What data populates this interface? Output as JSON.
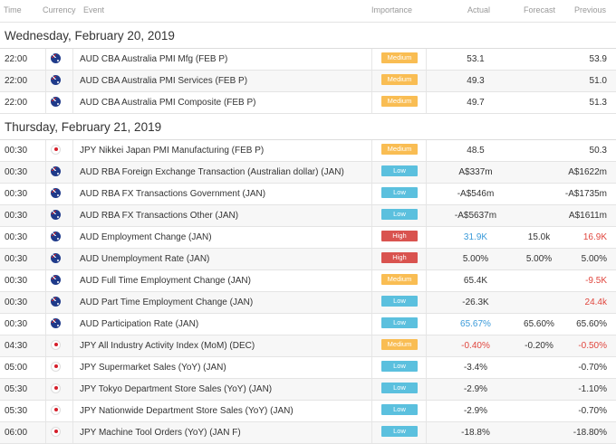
{
  "header": {
    "time": "Time",
    "currency": "Currency",
    "event": "Event",
    "importance": "Importance",
    "actual": "Actual",
    "forecast": "Forecast",
    "previous": "Previous"
  },
  "colors": {
    "medium": "#f9bd53",
    "low": "#5bc0de",
    "high": "#d9534f",
    "better": "#3a9ad9",
    "worse": "#e0463e"
  },
  "days": [
    {
      "title": "Wednesday, February 20, 2019",
      "events": [
        {
          "time": "22:00",
          "flag": "au",
          "event": "AUD CBA Australia PMI Mfg (FEB P)",
          "importance": "Medium",
          "actual": "53.1",
          "forecast": "",
          "previous": "53.9",
          "actual_tone": "",
          "previous_tone": ""
        },
        {
          "time": "22:00",
          "flag": "au",
          "event": "AUD CBA Australia PMI Services (FEB P)",
          "importance": "Medium",
          "actual": "49.3",
          "forecast": "",
          "previous": "51.0",
          "actual_tone": "",
          "previous_tone": ""
        },
        {
          "time": "22:00",
          "flag": "au",
          "event": "AUD CBA Australia PMI Composite (FEB P)",
          "importance": "Medium",
          "actual": "49.7",
          "forecast": "",
          "previous": "51.3",
          "actual_tone": "",
          "previous_tone": ""
        }
      ]
    },
    {
      "title": "Thursday, February 21, 2019",
      "events": [
        {
          "time": "00:30",
          "flag": "jp",
          "event": "JPY Nikkei Japan PMI Manufacturing (FEB P)",
          "importance": "Medium",
          "actual": "48.5",
          "forecast": "",
          "previous": "50.3",
          "actual_tone": "",
          "previous_tone": ""
        },
        {
          "time": "00:30",
          "flag": "au",
          "event": "AUD RBA Foreign Exchange Transaction (Australian dollar) (JAN)",
          "importance": "Low",
          "actual": "A$337m",
          "forecast": "",
          "previous": "A$1622m",
          "actual_tone": "",
          "previous_tone": ""
        },
        {
          "time": "00:30",
          "flag": "au",
          "event": "AUD RBA FX Transactions Government (JAN)",
          "importance": "Low",
          "actual": "-A$546m",
          "forecast": "",
          "previous": "-A$1735m",
          "actual_tone": "",
          "previous_tone": ""
        },
        {
          "time": "00:30",
          "flag": "au",
          "event": "AUD RBA FX Transactions Other (JAN)",
          "importance": "Low",
          "actual": "-A$5637m",
          "forecast": "",
          "previous": "A$1611m",
          "actual_tone": "",
          "previous_tone": ""
        },
        {
          "time": "00:30",
          "flag": "au",
          "event": "AUD Employment Change (JAN)",
          "importance": "High",
          "actual": "31.9K",
          "forecast": "15.0k",
          "previous": "16.9K",
          "actual_tone": "blue",
          "previous_tone": "red"
        },
        {
          "time": "00:30",
          "flag": "au",
          "event": "AUD Unemployment Rate (JAN)",
          "importance": "High",
          "actual": "5.00%",
          "forecast": "5.00%",
          "previous": "5.00%",
          "actual_tone": "",
          "previous_tone": ""
        },
        {
          "time": "00:30",
          "flag": "au",
          "event": "AUD Full Time Employment Change (JAN)",
          "importance": "Medium",
          "actual": "65.4K",
          "forecast": "",
          "previous": "-9.5K",
          "actual_tone": "",
          "previous_tone": "red"
        },
        {
          "time": "00:30",
          "flag": "au",
          "event": "AUD Part Time Employment Change (JAN)",
          "importance": "Low",
          "actual": "-26.3K",
          "forecast": "",
          "previous": "24.4k",
          "actual_tone": "",
          "previous_tone": "red"
        },
        {
          "time": "00:30",
          "flag": "au",
          "event": "AUD Participation Rate (JAN)",
          "importance": "Low",
          "actual": "65.67%",
          "forecast": "65.60%",
          "previous": "65.60%",
          "actual_tone": "blue",
          "previous_tone": ""
        },
        {
          "time": "04:30",
          "flag": "jp",
          "event": "JPY All Industry Activity Index (MoM) (DEC)",
          "importance": "Medium",
          "actual": "-0.40%",
          "forecast": "-0.20%",
          "previous": "-0.50%",
          "actual_tone": "red",
          "previous_tone": "red"
        },
        {
          "time": "05:00",
          "flag": "jp",
          "event": "JPY Supermarket Sales (YoY) (JAN)",
          "importance": "Low",
          "actual": "-3.4%",
          "forecast": "",
          "previous": "-0.70%",
          "actual_tone": "",
          "previous_tone": ""
        },
        {
          "time": "05:30",
          "flag": "jp",
          "event": "JPY Tokyo Department Store Sales (YoY) (JAN)",
          "importance": "Low",
          "actual": "-2.9%",
          "forecast": "",
          "previous": "-1.10%",
          "actual_tone": "",
          "previous_tone": ""
        },
        {
          "time": "05:30",
          "flag": "jp",
          "event": "JPY Nationwide Department Store Sales (YoY) (JAN)",
          "importance": "Low",
          "actual": "-2.9%",
          "forecast": "",
          "previous": "-0.70%",
          "actual_tone": "",
          "previous_tone": ""
        },
        {
          "time": "06:00",
          "flag": "jp",
          "event": "JPY Machine Tool Orders (YoY) (JAN F)",
          "importance": "Low",
          "actual": "-18.8%",
          "forecast": "",
          "previous": "-18.80%",
          "actual_tone": "",
          "previous_tone": ""
        }
      ]
    }
  ]
}
